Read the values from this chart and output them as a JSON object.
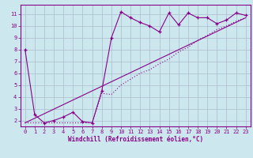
{
  "background_color": "#cce8ee",
  "grid_color": "#aabbcc",
  "line_color": "#880088",
  "xlabel": "Windchill (Refroidissement éolien,°C)",
  "xlim": [
    -0.5,
    23.5
  ],
  "ylim": [
    1.5,
    11.8
  ],
  "yticks": [
    2,
    3,
    4,
    5,
    6,
    7,
    8,
    9,
    10,
    11
  ],
  "xticks": [
    0,
    1,
    2,
    3,
    4,
    5,
    6,
    7,
    8,
    9,
    10,
    11,
    12,
    13,
    14,
    15,
    16,
    17,
    18,
    19,
    20,
    21,
    22,
    23
  ],
  "series1_x": [
    0,
    1,
    2,
    3,
    4,
    5,
    6,
    7,
    8,
    9,
    10,
    11,
    12,
    13,
    14,
    15,
    16,
    17,
    18,
    19,
    20,
    21,
    22,
    23
  ],
  "series1_y": [
    8.0,
    2.5,
    1.8,
    2.0,
    2.3,
    2.7,
    1.9,
    1.8,
    4.5,
    9.0,
    11.2,
    10.7,
    10.3,
    10.0,
    9.5,
    11.1,
    10.1,
    11.1,
    10.7,
    10.7,
    10.2,
    10.5,
    11.1,
    10.9
  ],
  "series2_x": [
    0,
    7,
    8,
    9,
    10,
    11,
    12,
    13,
    14,
    15,
    16,
    17,
    18,
    19,
    20,
    21,
    22,
    23
  ],
  "series2_y": [
    1.8,
    1.8,
    4.3,
    4.2,
    5.0,
    5.5,
    6.0,
    6.3,
    6.8,
    7.2,
    7.8,
    8.2,
    8.8,
    9.2,
    9.7,
    10.0,
    10.4,
    10.7
  ],
  "series3_x": [
    0,
    23
  ],
  "series3_y": [
    1.8,
    10.7
  ]
}
